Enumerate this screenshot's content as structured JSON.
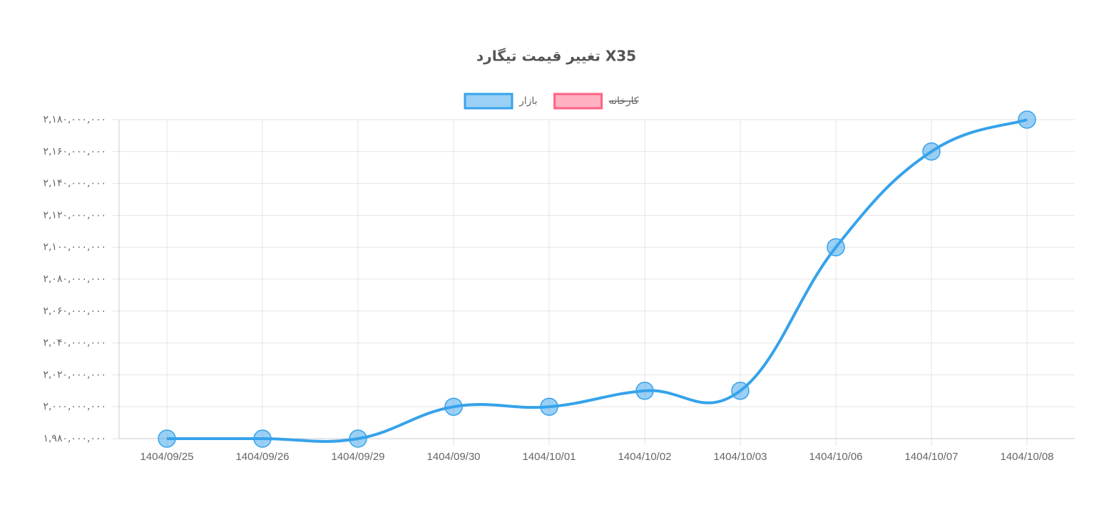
{
  "chart_data": {
    "type": "line",
    "title": "تغییر قیمت تیگارد X35",
    "categories": [
      "1404/09/25",
      "1404/09/26",
      "1404/09/29",
      "1404/09/30",
      "1404/10/01",
      "1404/10/02",
      "1404/10/03",
      "1404/10/06",
      "1404/10/07",
      "1404/10/08"
    ],
    "series": [
      {
        "name": "بازار",
        "color": "#36a2eb",
        "hidden": false,
        "values": [
          1980000000,
          1980000000,
          1980000000,
          2000000000,
          2000000000,
          2010000000,
          2010000000,
          2100000000,
          2160000000,
          2180000000
        ]
      },
      {
        "name": "کارخانه",
        "color": "#ff6384",
        "hidden": true,
        "values": [
          null,
          null,
          null,
          null,
          null,
          null,
          null,
          null,
          null,
          null
        ]
      }
    ],
    "ylim": [
      1980000000,
      2180000000
    ],
    "yticks": [
      {
        "value": 1980000000,
        "label": "۱,۹۸۰,۰۰۰,۰۰۰"
      },
      {
        "value": 2000000000,
        "label": "۲,۰۰۰,۰۰۰,۰۰۰"
      },
      {
        "value": 2020000000,
        "label": "۲,۰۲۰,۰۰۰,۰۰۰"
      },
      {
        "value": 2040000000,
        "label": "۲,۰۴۰,۰۰۰,۰۰۰"
      },
      {
        "value": 2060000000,
        "label": "۲,۰۶۰,۰۰۰,۰۰۰"
      },
      {
        "value": 2080000000,
        "label": "۲,۰۸۰,۰۰۰,۰۰۰"
      },
      {
        "value": 2100000000,
        "label": "۲,۱۰۰,۰۰۰,۰۰۰"
      },
      {
        "value": 2120000000,
        "label": "۲,۱۲۰,۰۰۰,۰۰۰"
      },
      {
        "value": 2140000000,
        "label": "۲,۱۴۰,۰۰۰,۰۰۰"
      },
      {
        "value": 2160000000,
        "label": "۲,۱۶۰,۰۰۰,۰۰۰"
      },
      {
        "value": 2180000000,
        "label": "۲,۱۸۰,۰۰۰,۰۰۰"
      }
    ],
    "grid": true
  }
}
